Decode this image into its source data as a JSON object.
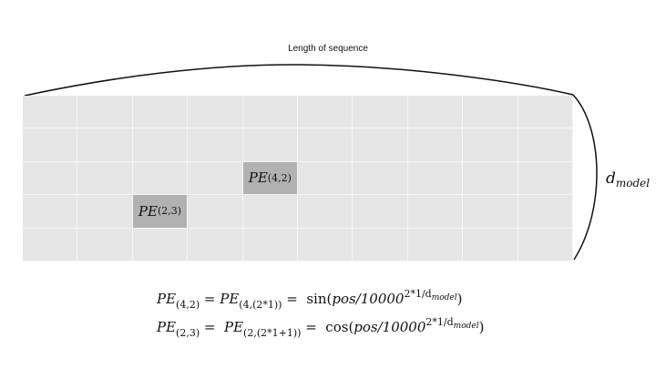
{
  "top_label": "Length of sequence",
  "d_model": {
    "base": "d",
    "sub": "model"
  },
  "highlights": [
    {
      "base": "PE",
      "sub": "(4,2)"
    },
    {
      "base": "PE",
      "sub": "(2,3)"
    }
  ],
  "equations": [
    {
      "lhs_sub": "(4,2)",
      "mid_sub": "(4,(2*1))",
      "func": "sin",
      "arg": "pos/10000",
      "exp": "2*1/d",
      "exp_sub": "model",
      "close": ")"
    },
    {
      "lhs_sub": "(2,3)",
      "mid_sub": "(2,(2*1+1))",
      "func": "cos",
      "arg": "pos/10000",
      "exp": "2*1/d",
      "exp_sub": "model",
      "close": ")"
    }
  ],
  "colors": {
    "cell": "#e6e6e6",
    "highlight": "#b1b1b1"
  }
}
